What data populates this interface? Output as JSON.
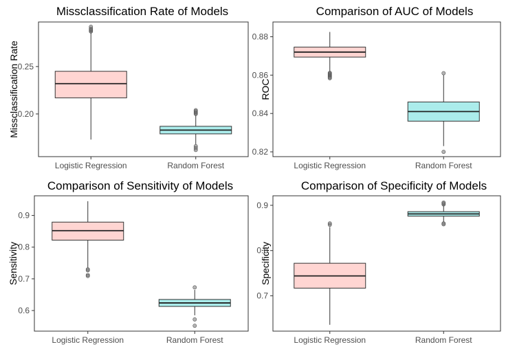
{
  "chart_data": [
    {
      "type": "box",
      "title": "Missclassification Rate of Models",
      "xlabel": "",
      "ylabel": "Missclassification Rate",
      "ylim": [
        0.155,
        0.297
      ],
      "yticks": [
        "0.20",
        "0.25"
      ],
      "categories": [
        "Logistic Regression",
        "Random Forest"
      ],
      "boxes": [
        {
          "category": "Logistic Regression",
          "min": 0.173,
          "q1": 0.217,
          "median": 0.232,
          "q3": 0.245,
          "max": 0.286,
          "outliers": [
            0.287,
            0.288,
            0.289,
            0.29,
            0.292
          ],
          "fill": "#ffd5d2"
        },
        {
          "category": "Random Forest",
          "min": 0.168,
          "q1": 0.179,
          "median": 0.183,
          "q3": 0.187,
          "max": 0.199,
          "outliers": [
            0.2,
            0.201,
            0.202,
            0.203,
            0.204,
            0.166,
            0.164,
            0.162
          ],
          "fill": "#abeceb"
        }
      ]
    },
    {
      "type": "box",
      "title": "Comparison of AUC of Models",
      "xlabel": "",
      "ylabel": "ROC",
      "ylim": [
        0.8175,
        0.8877
      ],
      "yticks": [
        "0.82",
        "0.84",
        "0.86",
        "0.88"
      ],
      "categories": [
        "Logistic Regression",
        "Random Forest"
      ],
      "boxes": [
        {
          "category": "Logistic Regression",
          "min": 0.8615,
          "q1": 0.8694,
          "median": 0.872,
          "q3": 0.8746,
          "max": 0.8825,
          "outliers": [
            0.8612,
            0.8608,
            0.8604,
            0.86,
            0.8596,
            0.8592,
            0.8588,
            0.8584
          ],
          "fill": "#ffd5d2"
        },
        {
          "category": "Random Forest",
          "min": 0.823,
          "q1": 0.836,
          "median": 0.841,
          "q3": 0.846,
          "max": 0.86,
          "outliers": [
            0.861,
            0.82
          ],
          "fill": "#abeceb"
        }
      ]
    },
    {
      "type": "box",
      "title": "Comparison of Sensitivity of Models",
      "xlabel": "",
      "ylabel": "Sensitivity",
      "ylim": [
        0.535,
        0.962
      ],
      "yticks": [
        "0.6",
        "0.7",
        "0.8",
        "0.9"
      ],
      "categories": [
        "Logistic Regression",
        "Random Forest"
      ],
      "boxes": [
        {
          "category": "Logistic Regression",
          "min": 0.735,
          "q1": 0.822,
          "median": 0.852,
          "q3": 0.879,
          "max": 0.945,
          "outliers": [
            0.73,
            0.727,
            0.712,
            0.709
          ],
          "fill": "#ffd5d2"
        },
        {
          "category": "Random Forest",
          "min": 0.585,
          "q1": 0.613,
          "median": 0.624,
          "q3": 0.635,
          "max": 0.665,
          "outliers": [
            0.673,
            0.572,
            0.552
          ],
          "fill": "#abeceb"
        }
      ]
    },
    {
      "type": "box",
      "title": "Comparison of Specificity of Models",
      "xlabel": "",
      "ylabel": "Specificity",
      "ylim": [
        0.622,
        0.921
      ],
      "yticks": [
        "0.7",
        "0.8",
        "0.9"
      ],
      "categories": [
        "Logistic Regression",
        "Random Forest"
      ],
      "boxes": [
        {
          "category": "Logistic Regression",
          "min": 0.636,
          "q1": 0.717,
          "median": 0.744,
          "q3": 0.772,
          "max": 0.852,
          "outliers": [
            0.857,
            0.86
          ],
          "fill": "#ffd5d2"
        },
        {
          "category": "Random Forest",
          "min": 0.863,
          "q1": 0.876,
          "median": 0.881,
          "q3": 0.886,
          "max": 0.9,
          "outliers": [
            0.902,
            0.904,
            0.906,
            0.86,
            0.858
          ],
          "fill": "#abeceb"
        }
      ]
    }
  ]
}
